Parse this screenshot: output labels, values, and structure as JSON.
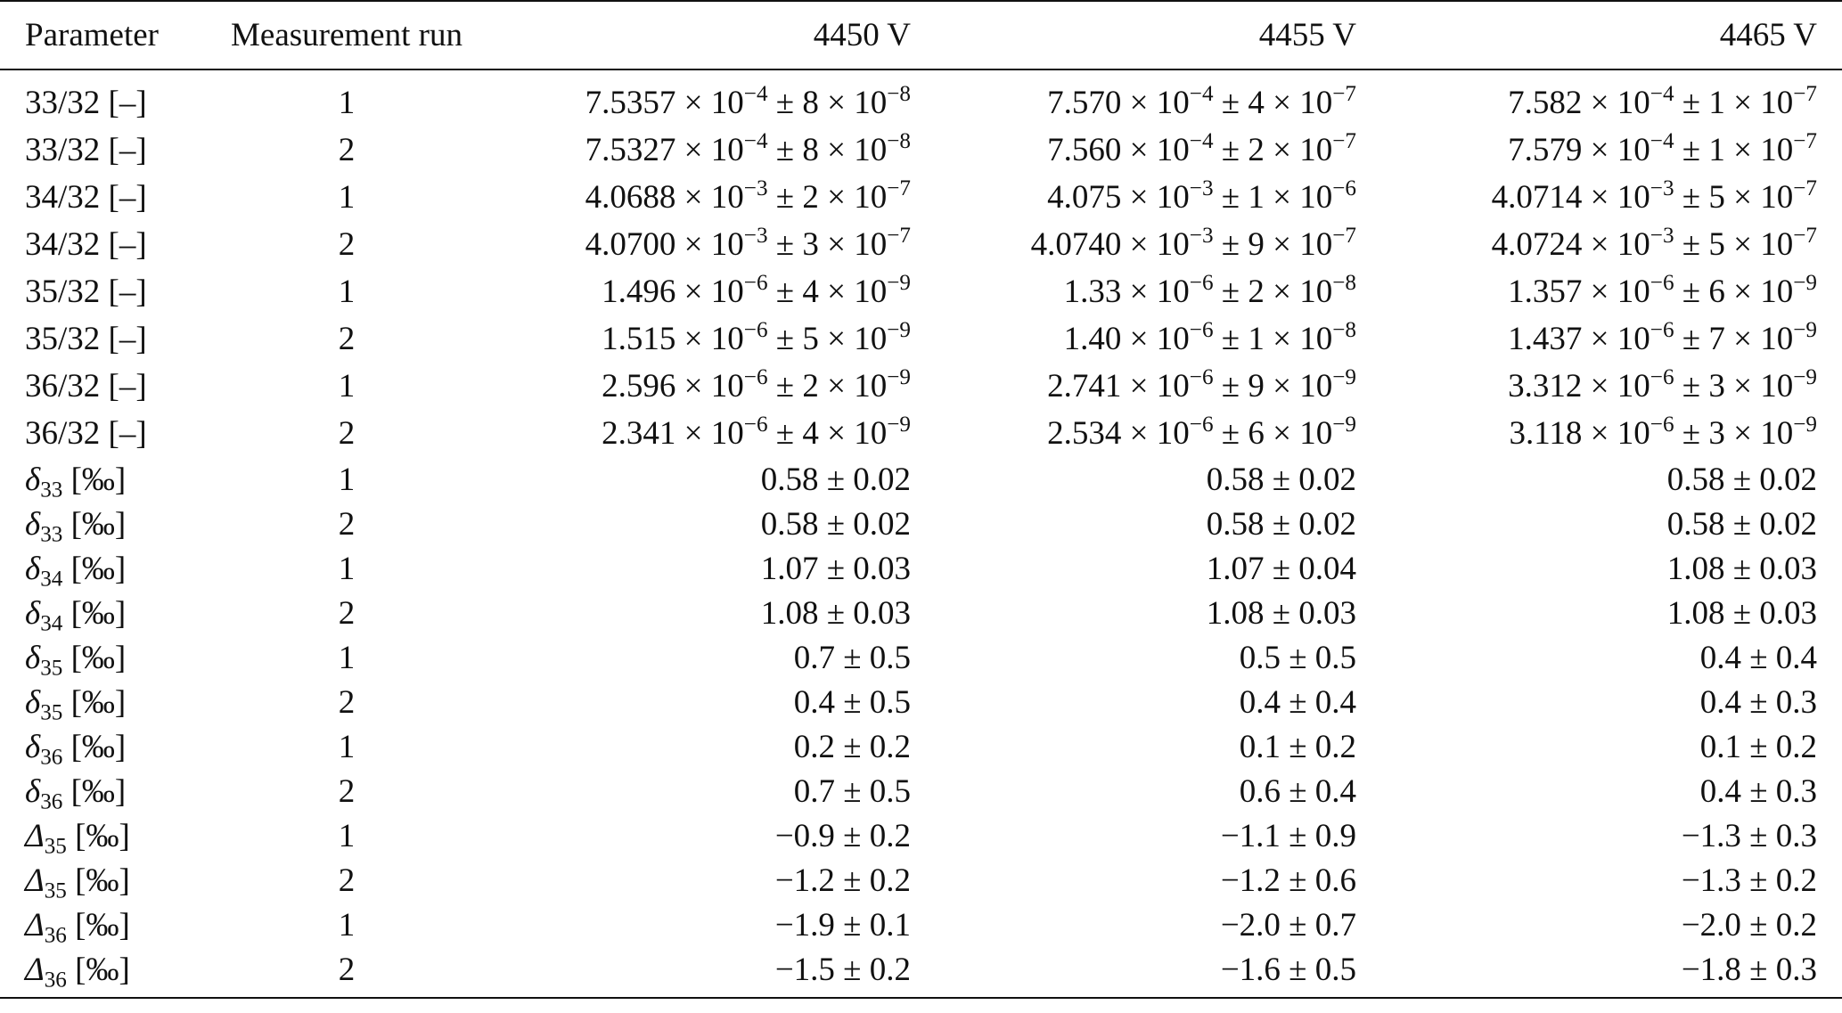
{
  "table": {
    "columns": [
      "Parameter",
      "Measurement run",
      "4450 V",
      "4455 V",
      "4465 V"
    ],
    "sci_rows": [
      {
        "param": "33/32 [–]",
        "run": "1",
        "vals": [
          {
            "m": "7.5357",
            "e": "−4",
            "um": "8",
            "ue": "−8"
          },
          {
            "m": "7.570",
            "e": "−4",
            "um": "4",
            "ue": "−7"
          },
          {
            "m": "7.582",
            "e": "−4",
            "um": "1",
            "ue": "−7"
          }
        ]
      },
      {
        "param": "33/32 [–]",
        "run": "2",
        "vals": [
          {
            "m": "7.5327",
            "e": "−4",
            "um": "8",
            "ue": "−8"
          },
          {
            "m": "7.560",
            "e": "−4",
            "um": "2",
            "ue": "−7"
          },
          {
            "m": "7.579",
            "e": "−4",
            "um": "1",
            "ue": "−7"
          }
        ]
      },
      {
        "param": "34/32 [–]",
        "run": "1",
        "vals": [
          {
            "m": "4.0688",
            "e": "−3",
            "um": "2",
            "ue": "−7"
          },
          {
            "m": "4.075",
            "e": "−3",
            "um": "1",
            "ue": "−6"
          },
          {
            "m": "4.0714",
            "e": "−3",
            "um": "5",
            "ue": "−7"
          }
        ]
      },
      {
        "param": "34/32 [–]",
        "run": "2",
        "vals": [
          {
            "m": "4.0700",
            "e": "−3",
            "um": "3",
            "ue": "−7"
          },
          {
            "m": "4.0740",
            "e": "−3",
            "um": "9",
            "ue": "−7"
          },
          {
            "m": "4.0724",
            "e": "−3",
            "um": "5",
            "ue": "−7"
          }
        ]
      },
      {
        "param": "35/32 [–]",
        "run": "1",
        "vals": [
          {
            "m": "1.496",
            "e": "−6",
            "um": "4",
            "ue": "−9"
          },
          {
            "m": "1.33",
            "e": "−6",
            "um": "2",
            "ue": "−8"
          },
          {
            "m": "1.357",
            "e": "−6",
            "um": "6",
            "ue": "−9"
          }
        ]
      },
      {
        "param": "35/32 [–]",
        "run": "2",
        "vals": [
          {
            "m": "1.515",
            "e": "−6",
            "um": "5",
            "ue": "−9"
          },
          {
            "m": "1.40",
            "e": "−6",
            "um": "1",
            "ue": "−8"
          },
          {
            "m": "1.437",
            "e": "−6",
            "um": "7",
            "ue": "−9"
          }
        ]
      },
      {
        "param": "36/32 [–]",
        "run": "1",
        "vals": [
          {
            "m": "2.596",
            "e": "−6",
            "um": "2",
            "ue": "−9"
          },
          {
            "m": "2.741",
            "e": "−6",
            "um": "9",
            "ue": "−9"
          },
          {
            "m": "3.312",
            "e": "−6",
            "um": "3",
            "ue": "−9"
          }
        ]
      },
      {
        "param": "36/32 [–]",
        "run": "2",
        "vals": [
          {
            "m": "2.341",
            "e": "−6",
            "um": "4",
            "ue": "−9"
          },
          {
            "m": "2.534",
            "e": "−6",
            "um": "6",
            "ue": "−9"
          },
          {
            "m": "3.118",
            "e": "−6",
            "um": "3",
            "ue": "−9"
          }
        ]
      }
    ],
    "delta_rows": [
      {
        "sym": "δ",
        "sub": "33",
        "unit": "[‰]",
        "run": "1",
        "vals": [
          "0.58 ± 0.02",
          "0.58 ± 0.02",
          "0.58 ± 0.02"
        ]
      },
      {
        "sym": "δ",
        "sub": "33",
        "unit": "[‰]",
        "run": "2",
        "vals": [
          "0.58 ± 0.02",
          "0.58 ± 0.02",
          "0.58 ± 0.02"
        ]
      },
      {
        "sym": "δ",
        "sub": "34",
        "unit": "[‰]",
        "run": "1",
        "vals": [
          "1.07 ± 0.03",
          "1.07 ± 0.04",
          "1.08 ± 0.03"
        ]
      },
      {
        "sym": "δ",
        "sub": "34",
        "unit": "[‰]",
        "run": "2",
        "vals": [
          "1.08 ± 0.03",
          "1.08 ± 0.03",
          "1.08 ± 0.03"
        ]
      },
      {
        "sym": "δ",
        "sub": "35",
        "unit": "[‰]",
        "run": "1",
        "vals": [
          "0.7 ± 0.5",
          "0.5 ± 0.5",
          "0.4 ± 0.4"
        ]
      },
      {
        "sym": "δ",
        "sub": "35",
        "unit": "[‰]",
        "run": "2",
        "vals": [
          "0.4 ± 0.5",
          "0.4 ± 0.4",
          "0.4 ± 0.3"
        ]
      },
      {
        "sym": "δ",
        "sub": "36",
        "unit": "[‰]",
        "run": "1",
        "vals": [
          "0.2 ± 0.2",
          "0.1 ± 0.2",
          "0.1 ± 0.2"
        ]
      },
      {
        "sym": "δ",
        "sub": "36",
        "unit": "[‰]",
        "run": "2",
        "vals": [
          "0.7 ± 0.5",
          "0.6 ± 0.4",
          "0.4 ± 0.3"
        ]
      },
      {
        "sym": "Δ",
        "sub": "35",
        "unit": "[‰]",
        "run": "1",
        "vals": [
          "−0.9 ± 0.2",
          "−1.1 ± 0.9",
          "−1.3 ± 0.3"
        ]
      },
      {
        "sym": "Δ",
        "sub": "35",
        "unit": "[‰]",
        "run": "2",
        "vals": [
          "−1.2 ± 0.2",
          "−1.2 ± 0.6",
          "−1.3 ± 0.2"
        ]
      },
      {
        "sym": "Δ",
        "sub": "36",
        "unit": "[‰]",
        "run": "1",
        "vals": [
          "−1.9 ± 0.1",
          "−2.0 ± 0.7",
          "−2.0 ± 0.2"
        ]
      },
      {
        "sym": "Δ",
        "sub": "36",
        "unit": "[‰]",
        "run": "2",
        "vals": [
          "−1.5 ± 0.2",
          "−1.6 ± 0.5",
          "−1.8 ± 0.3"
        ]
      }
    ]
  }
}
